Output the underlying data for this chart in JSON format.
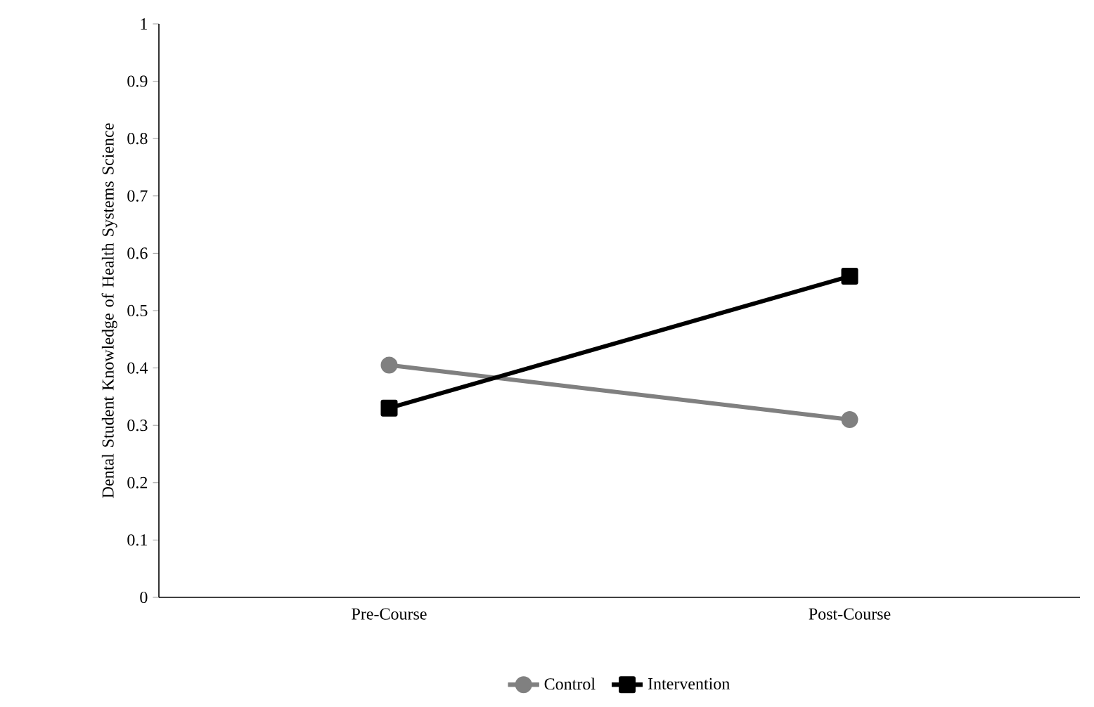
{
  "chart_data": {
    "type": "line",
    "ylabel": "Dental Student Knowledge of Health Systems Science",
    "categories": [
      "Pre-Course",
      "Post-Course"
    ],
    "series": [
      {
        "name": "Control",
        "color": "#808080",
        "values": [
          0.405,
          0.31
        ],
        "marker": "circle"
      },
      {
        "name": "Intervention",
        "color": "#000000",
        "values": [
          0.33,
          0.56
        ],
        "marker": "square"
      }
    ],
    "ylim": [
      0,
      1
    ],
    "yticks": [
      0,
      0.1,
      0.2,
      0.3,
      0.4,
      0.5,
      0.6,
      0.7,
      0.8,
      0.9,
      1
    ],
    "grid": false,
    "legend": "bottom"
  }
}
